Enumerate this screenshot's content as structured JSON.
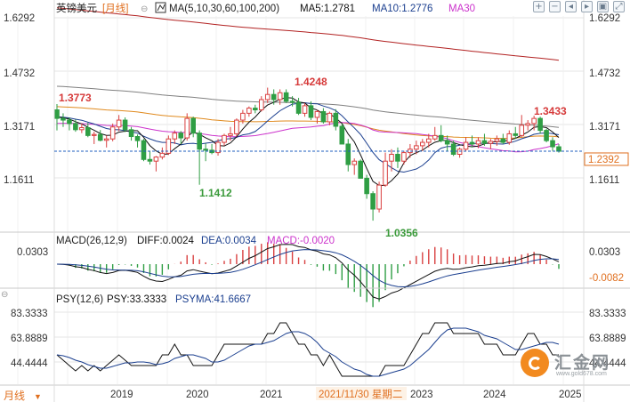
{
  "header": {
    "instrument": "英镑美元",
    "period_tag": "[月线]",
    "indicator_main": "MA(5,10,30,60,100,200)",
    "ma5": "MA5:1.2781",
    "ma10": "MA10:1.2776",
    "ma30": "MA30"
  },
  "colors": {
    "up": "#d94040",
    "down": "#2f9e44",
    "ma5": "#111111",
    "ma10": "#1b3f8f",
    "ma30": "#cc33cc",
    "ma60": "#e08a1e",
    "ma100": "#808080",
    "ma200": "#b22222",
    "grid": "#e6e6e6",
    "price_line": "#1f5fbf",
    "axis_text": "#333333",
    "label_red": "#d63a3a",
    "label_green": "#3a9a3a"
  },
  "price_axis": {
    "ticks": [
      "1.6292",
      "1.4732",
      "1.3171",
      "1.1611"
    ],
    "tick_values": [
      1.6292,
      1.4732,
      1.3171,
      1.1611
    ],
    "current": "1.2392",
    "current_value": 1.2392
  },
  "annotations": {
    "high1": "1.3773",
    "high2": "1.4248",
    "high3": "1.3433",
    "low1": "1.1412",
    "low2": "1.0356"
  },
  "macd_panel": {
    "title": "MACD(26,12,9)",
    "diff": "DIFF:0.0024",
    "dea": "DEA:0.0034",
    "macd": "MACD:-0.0020",
    "left_tick": "0.0303",
    "right_top": "0.0303",
    "right_bottom": "-0.0082"
  },
  "psy_panel": {
    "title": "PSY(12,6)",
    "psy": "PSY:33.3333",
    "psyma": "PSYMA:41.6667",
    "ticks": [
      "83.3333",
      "63.8889",
      "44.4444"
    ],
    "tick_values": [
      83.3333,
      63.8889,
      44.4444
    ]
  },
  "xaxis": {
    "period_label": "月线",
    "years": [
      "2019",
      "2020",
      "2021",
      "2023",
      "2024",
      "2025"
    ],
    "cursor_label": "2021/11/30  星期二"
  },
  "watermark": {
    "brand": "汇金网",
    "site": "www.gold678.com"
  },
  "toolbar": [
    "+",
    "−",
    "◂",
    "▸",
    "▣",
    "⤢"
  ],
  "chart_data": {
    "type": "candlestick",
    "panels": [
      "price",
      "macd",
      "psy"
    ],
    "period": "monthly",
    "years": [
      "2019",
      "2020",
      "2021",
      "2023",
      "2024",
      "2025"
    ],
    "price_ticks": [
      1.6292,
      1.4732,
      1.3171,
      1.1611
    ],
    "candles": [
      [
        1.36,
        1.377,
        1.3,
        1.335
      ],
      [
        1.335,
        1.35,
        1.31,
        1.33
      ],
      [
        1.33,
        1.338,
        1.3,
        1.32
      ],
      [
        1.32,
        1.332,
        1.296,
        1.302
      ],
      [
        1.302,
        1.32,
        1.292,
        1.308
      ],
      [
        1.308,
        1.322,
        1.28,
        1.285
      ],
      [
        1.285,
        1.296,
        1.26,
        1.288
      ],
      [
        1.288,
        1.301,
        1.268,
        1.271
      ],
      [
        1.271,
        1.285,
        1.25,
        1.275
      ],
      [
        1.275,
        1.32,
        1.268,
        1.31
      ],
      [
        1.31,
        1.345,
        1.298,
        1.33
      ],
      [
        1.33,
        1.338,
        1.295,
        1.302
      ],
      [
        1.302,
        1.31,
        1.27,
        1.282
      ],
      [
        1.282,
        1.288,
        1.25,
        1.27
      ],
      [
        1.27,
        1.275,
        1.21,
        1.215
      ],
      [
        1.215,
        1.24,
        1.2,
        1.21
      ],
      [
        1.21,
        1.225,
        1.18,
        1.222
      ],
      [
        1.222,
        1.25,
        1.215,
        1.233
      ],
      [
        1.233,
        1.285,
        1.228,
        1.275
      ],
      [
        1.275,
        1.3,
        1.26,
        1.292
      ],
      [
        1.292,
        1.298,
        1.26,
        1.278
      ],
      [
        1.278,
        1.35,
        1.27,
        1.335
      ],
      [
        1.335,
        1.34,
        1.28,
        1.292
      ],
      [
        1.292,
        1.3,
        1.141,
        1.245
      ],
      [
        1.245,
        1.262,
        1.21,
        1.242
      ],
      [
        1.242,
        1.26,
        1.23,
        1.235
      ],
      [
        1.235,
        1.275,
        1.226,
        1.265
      ],
      [
        1.265,
        1.29,
        1.255,
        1.285
      ],
      [
        1.285,
        1.31,
        1.27,
        1.29
      ],
      [
        1.29,
        1.335,
        1.282,
        1.33
      ],
      [
        1.33,
        1.36,
        1.32,
        1.35
      ],
      [
        1.35,
        1.37,
        1.34,
        1.365
      ],
      [
        1.365,
        1.375,
        1.35,
        1.36
      ],
      [
        1.36,
        1.4,
        1.355,
        1.39
      ],
      [
        1.39,
        1.425,
        1.38,
        1.405
      ],
      [
        1.405,
        1.42,
        1.375,
        1.39
      ],
      [
        1.39,
        1.42,
        1.375,
        1.41
      ],
      [
        1.41,
        1.42,
        1.38,
        1.385
      ],
      [
        1.385,
        1.4,
        1.37,
        1.382
      ],
      [
        1.382,
        1.395,
        1.345,
        1.35
      ],
      [
        1.35,
        1.38,
        1.34,
        1.372
      ],
      [
        1.372,
        1.385,
        1.33,
        1.338
      ],
      [
        1.338,
        1.36,
        1.32,
        1.355
      ],
      [
        1.355,
        1.365,
        1.32,
        1.325
      ],
      [
        1.325,
        1.355,
        1.315,
        1.35
      ],
      [
        1.35,
        1.362,
        1.3,
        1.312
      ],
      [
        1.312,
        1.32,
        1.26,
        1.26
      ],
      [
        1.26,
        1.275,
        1.18,
        1.2
      ],
      [
        1.2,
        1.218,
        1.17,
        1.21
      ],
      [
        1.21,
        1.215,
        1.16,
        1.16
      ],
      [
        1.16,
        1.17,
        1.1,
        1.115
      ],
      [
        1.115,
        1.122,
        1.036,
        1.07
      ],
      [
        1.07,
        1.15,
        1.06,
        1.14
      ],
      [
        1.14,
        1.235,
        1.135,
        1.21
      ],
      [
        1.21,
        1.245,
        1.18,
        1.23
      ],
      [
        1.23,
        1.25,
        1.19,
        1.21
      ],
      [
        1.21,
        1.24,
        1.2,
        1.235
      ],
      [
        1.235,
        1.26,
        1.22,
        1.245
      ],
      [
        1.245,
        1.27,
        1.23,
        1.255
      ],
      [
        1.255,
        1.275,
        1.24,
        1.265
      ],
      [
        1.265,
        1.29,
        1.25,
        1.275
      ],
      [
        1.275,
        1.31,
        1.27,
        1.285
      ],
      [
        1.285,
        1.315,
        1.265,
        1.27
      ],
      [
        1.27,
        1.285,
        1.24,
        1.26
      ],
      [
        1.26,
        1.27,
        1.225,
        1.23
      ],
      [
        1.23,
        1.25,
        1.22,
        1.245
      ],
      [
        1.245,
        1.28,
        1.24,
        1.265
      ],
      [
        1.265,
        1.285,
        1.25,
        1.26
      ],
      [
        1.26,
        1.28,
        1.248,
        1.27
      ],
      [
        1.27,
        1.29,
        1.255,
        1.262
      ],
      [
        1.262,
        1.275,
        1.245,
        1.268
      ],
      [
        1.268,
        1.285,
        1.255,
        1.275
      ],
      [
        1.275,
        1.29,
        1.26,
        1.265
      ],
      [
        1.265,
        1.3,
        1.258,
        1.29
      ],
      [
        1.29,
        1.31,
        1.275,
        1.285
      ],
      [
        1.285,
        1.345,
        1.28,
        1.315
      ],
      [
        1.315,
        1.33,
        1.3,
        1.32
      ],
      [
        1.32,
        1.343,
        1.3,
        1.335
      ],
      [
        1.335,
        1.34,
        1.29,
        1.3
      ],
      [
        1.3,
        1.305,
        1.265,
        1.27
      ],
      [
        1.27,
        1.28,
        1.24,
        1.252
      ],
      [
        1.252,
        1.26,
        1.235,
        1.239
      ]
    ]
  }
}
